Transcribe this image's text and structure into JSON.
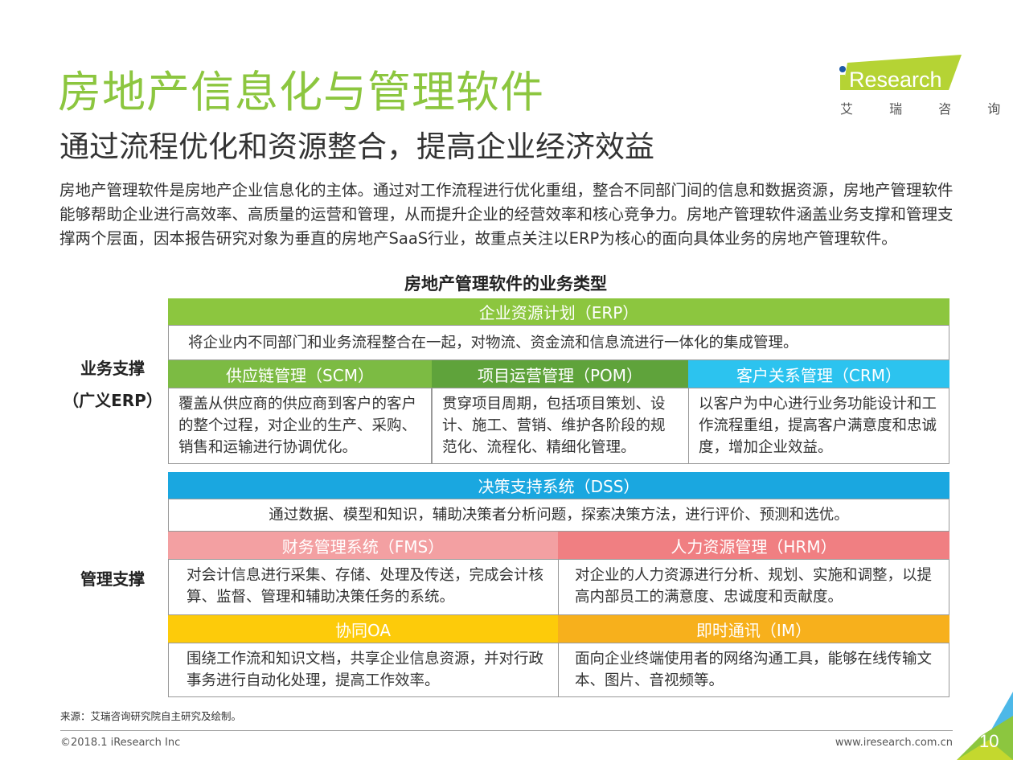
{
  "header": {
    "title": "房地产信息化与管理软件",
    "subtitle": "通过流程优化和资源整合，提高企业经济效益"
  },
  "logo": {
    "text": "iResearch",
    "cn": "艾 瑞 咨 询",
    "color": "#b5d334"
  },
  "intro": "房地产管理软件是房地产企业信息化的主体。通过对工作流程进行优化重组，整合不同部门间的信息和数据资源，房地产管理软件能够帮助企业进行高效率、高质量的运营和管理，从而提升企业的经营效率和核心竞争力。房地产管理软件涵盖业务支撑和管理支撑两个层面，因本报告研究对象为垂直的房地产SaaS行业，故重点关注以ERP为核心的面向具体业务的房地产管理软件。",
  "table": {
    "title": "房地产管理软件的业务类型",
    "business": {
      "label": "业务支撑",
      "label2": "（广义ERP）",
      "main": {
        "name": "企业资源计划（ERP）",
        "desc": "将企业内不同部门和业务流程整合在一起，对物流、资金流和信息流进行一体化的集成管理。",
        "color": "#8cc63f"
      },
      "subs": [
        {
          "name": "供应链管理（SCM）",
          "desc": "覆盖从供应商的供应商到客户的客户的整个过程，对企业的生产、采购、销售和运输进行协调优化。",
          "color": "#7cbb43"
        },
        {
          "name": "项目运营管理（POM）",
          "desc": "贯穿项目周期，包括项目策划、设计、施工、营销、维护各阶段的规范化、流程化、精细化管理。",
          "color": "#5fa33b"
        },
        {
          "name": "客户关系管理（CRM）",
          "desc": "以客户为中心进行业务功能设计和工作流程重组，提高客户满意度和忠诚度，增加企业效益。",
          "color": "#2cc3ef"
        }
      ]
    },
    "management": {
      "label": "管理支撑",
      "main": {
        "name": "决策支持系统（DSS）",
        "desc": "通过数据、模型和知识，辅助决策者分析问题，探索决策方法，进行评价、预测和选优。",
        "color": "#1aa7e0"
      },
      "subs": [
        {
          "name": "财务管理系统（FMS）",
          "desc": "对会计信息进行采集、存储、处理及传送，完成会计核算、监督、管理和辅助决策任务的系统。",
          "color": "#f3a0a2"
        },
        {
          "name": "人力资源管理（HRM）",
          "desc": "对企业的人力资源进行分析、规划、实施和调整，以提高内部员工的满意度、忠诚度和贡献度。",
          "color": "#f07f82"
        },
        {
          "name": "协同OA",
          "desc": "围绕工作流和知识文档，共享企业信息资源，并对行政事务进行自动化处理，提高工作效率。",
          "color": "#fdcb0a"
        },
        {
          "name": "即时通讯（IM）",
          "desc": "面向企业终端使用者的网络沟通工具，能够在线传输文本、图片、音视频等。",
          "color": "#f7b01c"
        }
      ]
    }
  },
  "footer": {
    "source": "来源：艾瑞咨询研究院自主研究及绘制。",
    "copyright": "©2018.1 iResearch Inc",
    "url": "www.iresearch.com.cn",
    "page": "10"
  }
}
